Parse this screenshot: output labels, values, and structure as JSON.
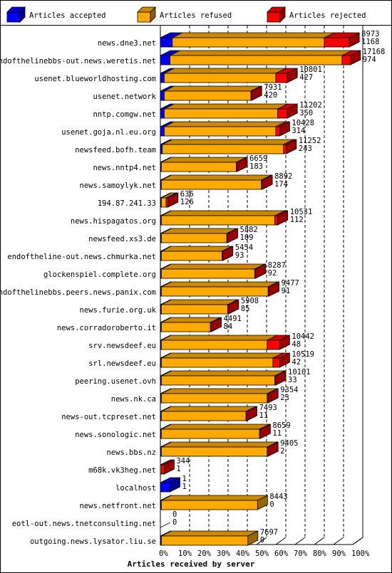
{
  "chart_data": {
    "type": "bar",
    "orientation": "horizontal",
    "stacked": true,
    "style": "3d",
    "grid": true,
    "legend_position": "top",
    "xlabel": "Articles received by server",
    "x_ticks": [
      "0%",
      "10%",
      "20%",
      "30%",
      "40%",
      "50%",
      "60%",
      "70%",
      "80%",
      "90%",
      "100%"
    ],
    "series": [
      {
        "name": "Articles accepted",
        "color": "#0000ff"
      },
      {
        "name": "Articles refused",
        "color": "#ffaa00"
      },
      {
        "name": "Articles rejected",
        "color": "#ff0000"
      }
    ],
    "servers": [
      {
        "name": "news.dne3.net",
        "total": "8973",
        "rejected": "1168",
        "accepted_pct": 6.2,
        "refused_pct": 79.0,
        "rejected_pct": 13.0
      },
      {
        "name": "endofthelinebbs-out.news.weretis.net",
        "total": "17168",
        "rejected": "974",
        "accepted_pct": 5.0,
        "refused_pct": 89.4,
        "rejected_pct": 4.4
      },
      {
        "name": "usenet.blueworldhosting.com",
        "total": "10801",
        "rejected": "427",
        "accepted_pct": 2.0,
        "refused_pct": 58.0,
        "rejected_pct": 6.0
      },
      {
        "name": "usenet.network",
        "total": "7931",
        "rejected": "420",
        "accepted_pct": 2.0,
        "refused_pct": 45.0,
        "rejected_pct": 0.5
      },
      {
        "name": "nntp.comgw.net",
        "total": "11202",
        "rejected": "350",
        "accepted_pct": 2.0,
        "refused_pct": 59.0,
        "rejected_pct": 5.0
      },
      {
        "name": "usenet.goja.nl.eu.org",
        "total": "10428",
        "rejected": "314",
        "accepted_pct": 2.0,
        "refused_pct": 58.0,
        "rejected_pct": 2.0
      },
      {
        "name": "newsfeed.bofh.team",
        "total": "11252",
        "rejected": "243",
        "accepted_pct": 1.0,
        "refused_pct": 63.0,
        "rejected_pct": 1.5
      },
      {
        "name": "news.nntp4.net",
        "total": "6659",
        "rejected": "183",
        "accepted_pct": 0.5,
        "refused_pct": 39.0,
        "rejected_pct": 0.5
      },
      {
        "name": "news.samoylyk.net",
        "total": "8892",
        "rejected": "174",
        "accepted_pct": 0.5,
        "refused_pct": 52.0,
        "rejected_pct": 0.5
      },
      {
        "name": "194.87.241.33",
        "total": "636",
        "rejected": "126",
        "accepted_pct": 0.5,
        "refused_pct": 2.5,
        "rejected_pct": 1.0
      },
      {
        "name": "news.hispagatos.org",
        "total": "10531",
        "rejected": "112",
        "accepted_pct": 0.5,
        "refused_pct": 59.0,
        "rejected_pct": 1.5
      },
      {
        "name": "newsfeed.xs3.de",
        "total": "5882",
        "rejected": "109",
        "accepted_pct": 0.5,
        "refused_pct": 34.0,
        "rejected_pct": 0.5
      },
      {
        "name": "endoftheline-out.news.chmurka.net",
        "total": "5454",
        "rejected": "93",
        "accepted_pct": 0.5,
        "refused_pct": 31.5,
        "rejected_pct": 0.5
      },
      {
        "name": "glockenspiel.complete.org",
        "total": "8287",
        "rejected": "92",
        "accepted_pct": 0.5,
        "refused_pct": 48.5,
        "rejected_pct": 0.5
      },
      {
        "name": "endofthelinebbs.peers.news.panix.com",
        "total": "9477",
        "rejected": "91",
        "accepted_pct": 0.5,
        "refused_pct": 55.5,
        "rejected_pct": 0.5
      },
      {
        "name": "news.furie.org.uk",
        "total": "5908",
        "rejected": "85",
        "accepted_pct": 0.5,
        "refused_pct": 34.5,
        "rejected_pct": 0.5
      },
      {
        "name": "news.corradoroberto.it",
        "total": "4491",
        "rejected": "84",
        "accepted_pct": 0.5,
        "refused_pct": 25.5,
        "rejected_pct": 0.5
      },
      {
        "name": "srv.newsdeef.eu",
        "total": "10442",
        "rejected": "48",
        "accepted_pct": 0.5,
        "refused_pct": 55.0,
        "rejected_pct": 6.5
      },
      {
        "name": "srl.newsdeef.eu",
        "total": "10519",
        "rejected": "42",
        "accepted_pct": 0.5,
        "refused_pct": 58.0,
        "rejected_pct": 3.5
      },
      {
        "name": "peering.usenet.ovh",
        "total": "10101",
        "rejected": "33",
        "accepted_pct": 0.5,
        "refused_pct": 59.0,
        "rejected_pct": 0.5
      },
      {
        "name": "news.nk.ca",
        "total": "9354",
        "rejected": "23",
        "accepted_pct": 0.5,
        "refused_pct": 55.0,
        "rejected_pct": 0.5
      },
      {
        "name": "news-out.tcpreset.net",
        "total": "7493",
        "rejected": "11",
        "accepted_pct": 0.5,
        "refused_pct": 44.0,
        "rejected_pct": 0.5
      },
      {
        "name": "news.sonologic.net",
        "total": "8659",
        "rejected": "11",
        "accepted_pct": 0.5,
        "refused_pct": 51.0,
        "rejected_pct": 0.5
      },
      {
        "name": "news.bbs.nz",
        "total": "9405",
        "rejected": "2",
        "accepted_pct": 0.5,
        "refused_pct": 55.0,
        "rejected_pct": 0.5
      },
      {
        "name": "m68k.vk3heg.net",
        "total": "344",
        "rejected": "1",
        "accepted_pct": 0.0,
        "refused_pct": 0.5,
        "rejected_pct": 1.5
      },
      {
        "name": "localhost",
        "total": "1",
        "rejected": "1",
        "accepted_pct": 5.0,
        "refused_pct": 0.0,
        "rejected_pct": 0.0
      },
      {
        "name": "news.netfront.net",
        "total": "8443",
        "rejected": "0",
        "accepted_pct": 0.5,
        "refused_pct": 50.0,
        "rejected_pct": 0.0
      },
      {
        "name": "eotl-out.news.tnetconsulting.net",
        "total": "0",
        "rejected": "0",
        "accepted_pct": 0.0,
        "refused_pct": 0.0,
        "rejected_pct": 0.0
      },
      {
        "name": "outgoing.news.lysator.liu.se",
        "total": "7697",
        "rejected": "0",
        "accepted_pct": 0.5,
        "refused_pct": 45.0,
        "rejected_pct": 0.0
      }
    ]
  }
}
